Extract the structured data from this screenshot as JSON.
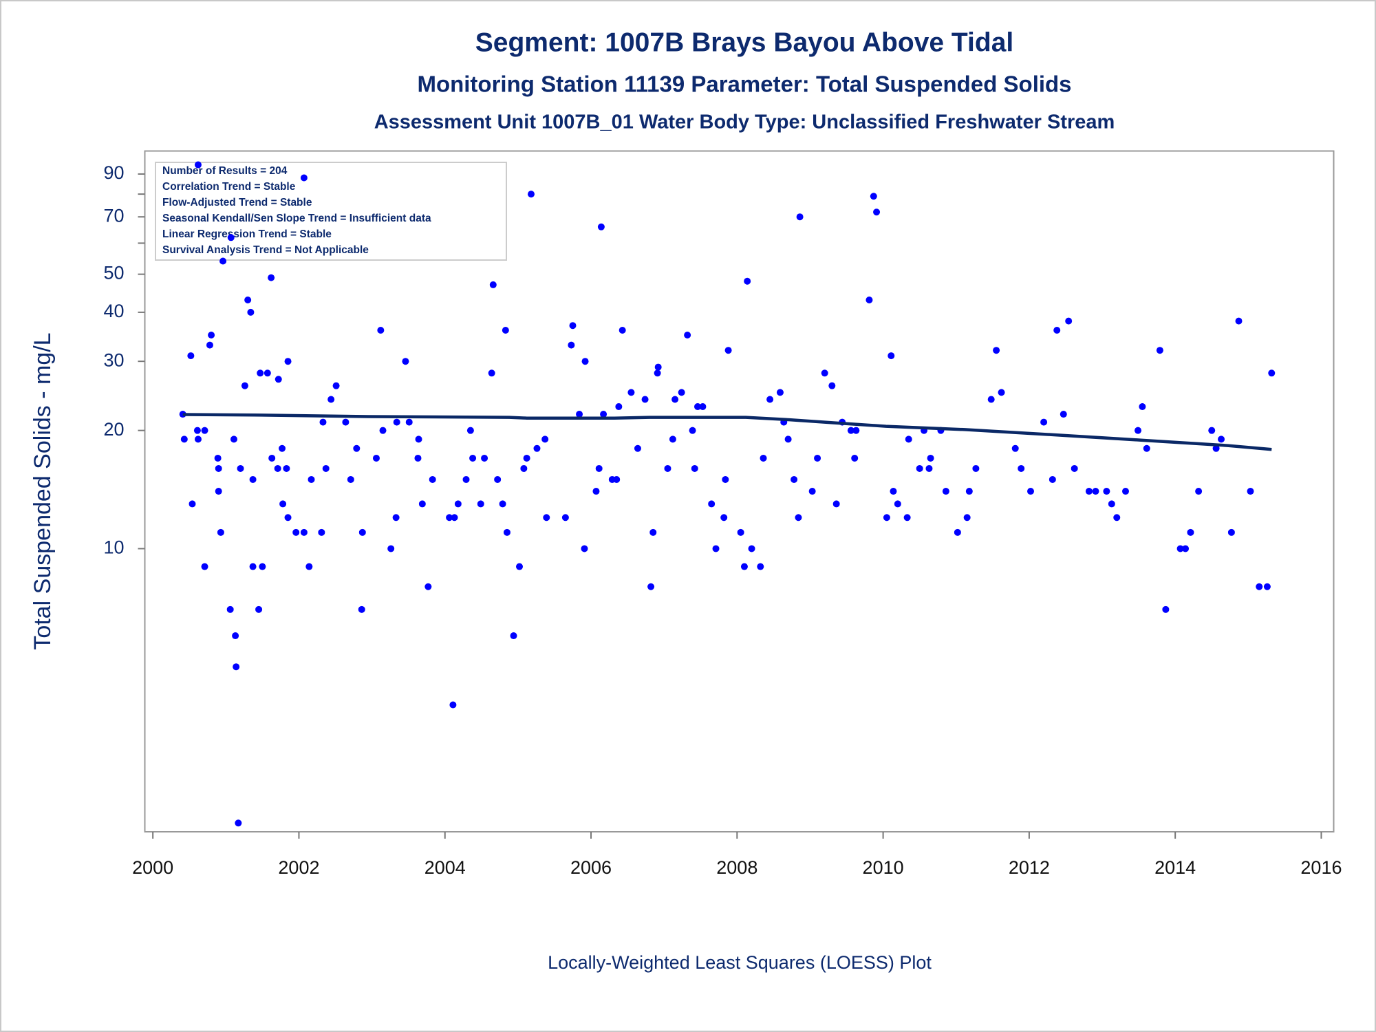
{
  "chart_data": {
    "type": "scatter",
    "title": "Segment: 1007B  Brays Bayou Above Tidal",
    "subtitle": "Monitoring Station 11139 Parameter: Total Suspended Solids",
    "subtitle2": "Assessment Unit 1007B_01   Water Body Type: Unclassified Freshwater Stream",
    "y_label": "Total Suspended Solids - mg/L",
    "footnote": "Locally-Weighted Least Squares (LOESS) Plot",
    "annotations": [
      "Number of Results = 204",
      "Correlation Trend = Stable",
      "Flow-Adjusted Trend = Stable",
      "Seasonal Kendall/Sen Slope Trend = Insufficient data",
      "Linear Regression Trend = Stable",
      "Survival Analysis Trend = Not Applicable"
    ],
    "log_y": true,
    "color": "#0000ff",
    "line_color": "#0a2866",
    "xlim": [
      1999.89,
      2016.17
    ],
    "xticks": [
      2000,
      2002,
      2004,
      2006,
      2008,
      2010,
      2012,
      2014,
      2016
    ],
    "ylim": [
      1.9,
      103
    ],
    "yticks": [
      10,
      20,
      30,
      40,
      50,
      70,
      90
    ],
    "minor_yticks": [
      60,
      80
    ],
    "x": [
      2000.41,
      2000.43,
      2000.52,
      2000.54,
      2000.62,
      2000.61,
      2000.62,
      2000.71,
      2000.71,
      2000.78,
      2000.8,
      2000.89,
      2000.9,
      2000.9,
      2000.93,
      2000.96,
      2001.06,
      2001.07,
      2001.11,
      2001.13,
      2001.14,
      2001.17,
      2001.2,
      2001.26,
      2001.3,
      2001.34,
      2001.37,
      2001.37,
      2001.45,
      2001.47,
      2001.5,
      2001.57,
      2001.62,
      2001.63,
      2001.71,
      2001.72,
      2001.77,
      2001.78,
      2001.83,
      2001.85,
      2001.85,
      2001.96,
      2002.07,
      2002.07,
      2002.14,
      2002.17,
      2002.31,
      2002.33,
      2002.37,
      2002.44,
      2002.51,
      2002.64,
      2002.71,
      2002.79,
      2002.86,
      2002.87,
      2003.06,
      2003.12,
      2003.15,
      2003.26,
      2003.33,
      2003.34,
      2003.46,
      2003.51,
      2003.63,
      2003.64,
      2003.69,
      2003.77,
      2003.83,
      2004.06,
      2004.11,
      2004.13,
      2004.18,
      2004.29,
      2004.35,
      2004.38,
      2004.49,
      2004.54,
      2004.64,
      2004.66,
      2004.72,
      2004.79,
      2004.83,
      2004.85,
      2004.94,
      2005.02,
      2005.08,
      2005.12,
      2005.18,
      2005.26,
      2005.37,
      2005.39,
      2005.65,
      2005.73,
      2005.75,
      2005.84,
      2005.91,
      2005.92,
      2006.07,
      2006.11,
      2006.14,
      2006.17,
      2006.29,
      2006.35,
      2006.38,
      2006.43,
      2006.55,
      2006.64,
      2006.74,
      2006.82,
      2006.85,
      2006.91,
      2006.92,
      2007.05,
      2007.12,
      2007.15,
      2007.24,
      2007.32,
      2007.39,
      2007.42,
      2007.46,
      2007.53,
      2007.65,
      2007.71,
      2007.82,
      2007.84,
      2007.88,
      2008.05,
      2008.1,
      2008.14,
      2008.2,
      2008.32,
      2008.36,
      2008.45,
      2008.59,
      2008.64,
      2008.7,
      2008.78,
      2008.84,
      2008.86,
      2009.03,
      2009.1,
      2009.2,
      2009.3,
      2009.36,
      2009.44,
      2009.56,
      2009.61,
      2009.63,
      2009.81,
      2009.87,
      2009.91,
      2010.05,
      2010.11,
      2010.14,
      2010.2,
      2010.33,
      2010.35,
      2010.5,
      2010.56,
      2010.63,
      2010.65,
      2010.79,
      2010.86,
      2011.02,
      2011.15,
      2011.18,
      2011.27,
      2011.48,
      2011.55,
      2011.62,
      2011.81,
      2011.89,
      2012.02,
      2012.2,
      2012.32,
      2012.38,
      2012.47,
      2012.54,
      2012.62,
      2012.82,
      2012.91,
      2013.06,
      2013.13,
      2013.2,
      2013.32,
      2013.49,
      2013.55,
      2013.61,
      2013.79,
      2013.87,
      2014.07,
      2014.14,
      2014.21,
      2014.32,
      2014.5,
      2014.56,
      2014.63,
      2014.77,
      2014.87,
      2015.03,
      2015.15,
      2015.26,
      2015.32
    ],
    "values": [
      22,
      19,
      31,
      13,
      95,
      20,
      19,
      20,
      9,
      33,
      35,
      17,
      16,
      14,
      11,
      54,
      7,
      62,
      19,
      6,
      5,
      2,
      16,
      26,
      43,
      40,
      15,
      9,
      7,
      28,
      9,
      28,
      49,
      17,
      16,
      27,
      18,
      13,
      16,
      12,
      30,
      11,
      88,
      11,
      9,
      15,
      11,
      21,
      16,
      24,
      26,
      21,
      15,
      18,
      7,
      11,
      17,
      36,
      20,
      10,
      12,
      21,
      30,
      21,
      17,
      19,
      13,
      8,
      15,
      12,
      4,
      12,
      13,
      15,
      20,
      17,
      13,
      17,
      28,
      47,
      15,
      13,
      36,
      11,
      6,
      9,
      16,
      17,
      80,
      18,
      19,
      12,
      12,
      33,
      37,
      22,
      10,
      30,
      14,
      16,
      66,
      22,
      15,
      15,
      23,
      36,
      25,
      18,
      24,
      8,
      11,
      28,
      29,
      16,
      19,
      24,
      25,
      35,
      20,
      16,
      23,
      23,
      13,
      10,
      12,
      15,
      32,
      11,
      9,
      48,
      10,
      9,
      17,
      24,
      25,
      21,
      19,
      15,
      12,
      70,
      14,
      17,
      28,
      26,
      13,
      21,
      20,
      17,
      20,
      43,
      79,
      72,
      12,
      31,
      14,
      13,
      12,
      19,
      16,
      20,
      16,
      17,
      20,
      14,
      11,
      12,
      14,
      16,
      24,
      32,
      25,
      18,
      16,
      14,
      21,
      15,
      36,
      22,
      38,
      16,
      14,
      14,
      14,
      13,
      12,
      14,
      20,
      23,
      18,
      32,
      7,
      10,
      10,
      11,
      14,
      20,
      18,
      19,
      11,
      38,
      14,
      8,
      8,
      28
    ],
    "loess": {
      "x": [
        2000.41,
        2001.39,
        2002.95,
        2004.88,
        2005.12,
        2006.32,
        2006.8,
        2008.12,
        2008.72,
        2009.44,
        2010.04,
        2011.12,
        2012.32,
        2013.53,
        2014.73,
        2015.32
      ],
      "values": [
        21.96,
        21.9,
        21.7,
        21.6,
        21.5,
        21.5,
        21.6,
        21.6,
        21.3,
        20.85,
        20.5,
        20.1,
        19.5,
        18.9,
        18.3,
        17.9
      ]
    }
  }
}
